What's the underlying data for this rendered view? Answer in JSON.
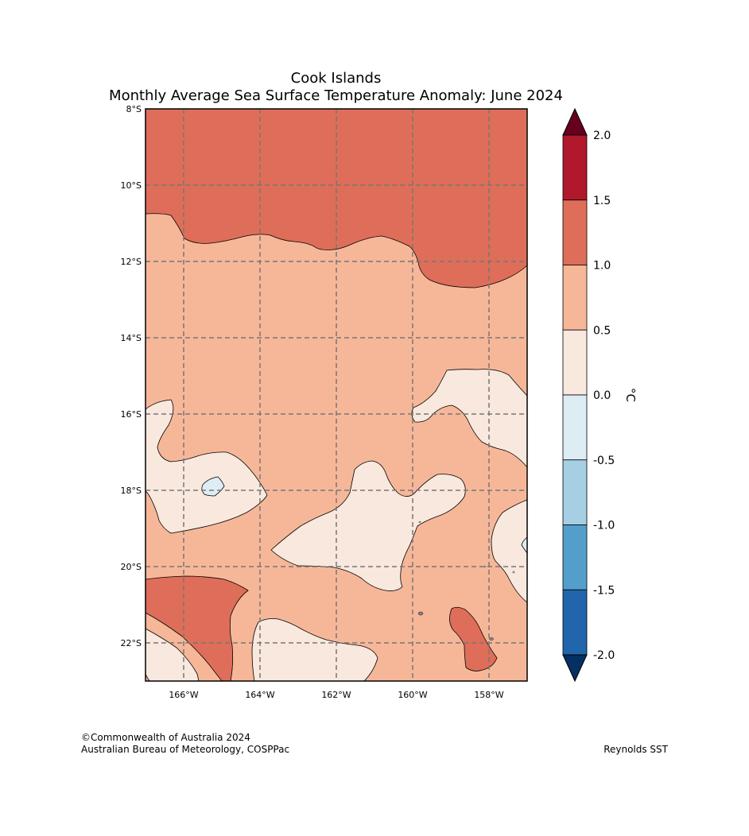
{
  "title": {
    "line1": "Cook Islands",
    "line2": "Monthly Average Sea Surface Temperature Anomaly: June 2024"
  },
  "map": {
    "lat_labels": [
      "8°S",
      "10°S",
      "12°S",
      "14°S",
      "16°S",
      "18°S",
      "20°S",
      "22°S"
    ],
    "lat_values": [
      -8,
      -10,
      -12,
      -14,
      -16,
      -18,
      -20,
      -22
    ],
    "lon_labels": [
      "166°W",
      "164°W",
      "162°W",
      "160°W",
      "158°W"
    ],
    "lon_values": [
      -166,
      -164,
      -162,
      -160,
      -158
    ],
    "extent": {
      "lon_min": -167,
      "lon_max": -157,
      "lat_min": -23,
      "lat_max": -8
    }
  },
  "colorbar": {
    "unit": "°C",
    "tick_labels": [
      "2.0",
      "1.5",
      "1.0",
      "0.5",
      "0.0",
      "-0.5",
      "-1.0",
      "-1.5",
      "-2.0"
    ],
    "tick_values": [
      2.0,
      1.5,
      1.0,
      0.5,
      0.0,
      -0.5,
      -1.0,
      -1.5,
      -2.0
    ],
    "bands": [
      {
        "range": "> 2.0",
        "color": "#67001f"
      },
      {
        "range": "1.5 to 2.0",
        "color": "#b2182b"
      },
      {
        "range": "1.0 to 1.5",
        "color": "#de6e59"
      },
      {
        "range": "0.5 to 1.0",
        "color": "#f6b799"
      },
      {
        "range": "0.0 to 0.5",
        "color": "#f8e8de"
      },
      {
        "range": "-0.5 to 0.0",
        "color": "#deecf4"
      },
      {
        "range": "-1.0 to -0.5",
        "color": "#a7cfe4"
      },
      {
        "range": "-1.5 to -1.0",
        "color": "#549ecc"
      },
      {
        "range": "-2.0 to -1.5",
        "color": "#2166ac"
      },
      {
        "range": "< -2.0",
        "color": "#053061"
      }
    ]
  },
  "footer": {
    "copyright": "©Commonwealth of Australia 2024",
    "agency": "Australian Bureau of Meteorology, COSPPac",
    "source": "Reynolds SST"
  }
}
